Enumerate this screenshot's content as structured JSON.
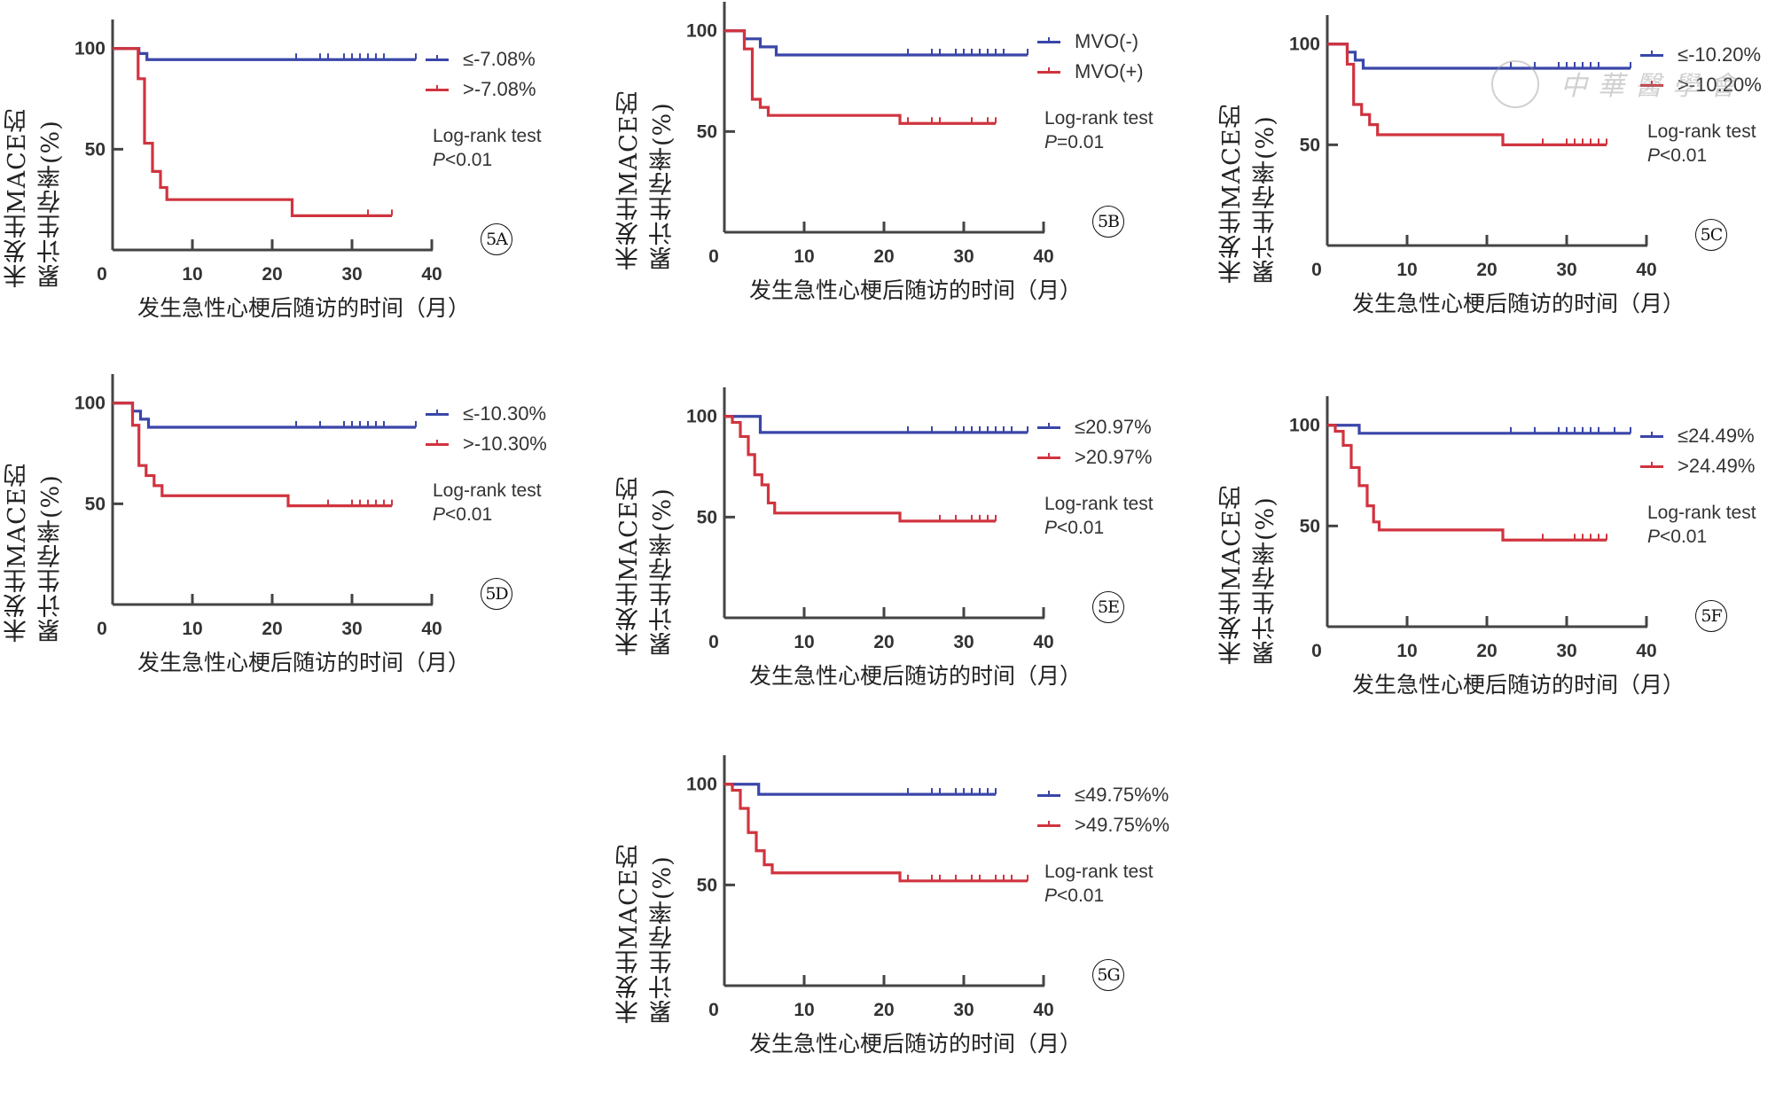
{
  "figure": {
    "y_axis_label_line1": "未发生MACE的",
    "y_axis_label_line2": "累计生存率(%)",
    "x_axis_label": "发生急性心梗后随访的时间（月）",
    "watermark_text": "中華醫學會",
    "colors": {
      "group_low": "#3a46a8",
      "group_high": "#d0343f",
      "axis": "#444444"
    }
  },
  "chart_data": [
    {
      "id": "5A",
      "type": "line",
      "subtype": "kaplan-meier",
      "panel_label": "5A",
      "xlabel": "发生急性心梗后随访的时间（月）",
      "ylabel": "未发生MACE的累计生存率(%)",
      "xlim": [
        0,
        40
      ],
      "ylim": [
        0,
        110
      ],
      "xticks": [
        0,
        10,
        20,
        30,
        40
      ],
      "yticks": [
        50,
        100
      ],
      "legend": "top-right",
      "stat_title": "Log-rank test",
      "stat_p_symbol": "P",
      "stat_p_value": "<0.01",
      "series": [
        {
          "name": "≤-7.08%",
          "color": "#3a46a8",
          "steps": [
            [
              0,
              100
            ],
            [
              3.3,
              97.5
            ],
            [
              4.3,
              94.5
            ]
          ],
          "end": 38,
          "censored": [
            23,
            26,
            27,
            29,
            30,
            31,
            32,
            33,
            34,
            38
          ]
        },
        {
          "name": ">-7.08%",
          "color": "#d0343f",
          "steps": [
            [
              0,
              100
            ],
            [
              3.2,
              85
            ],
            [
              4.0,
              53
            ],
            [
              5.0,
              39
            ],
            [
              6.0,
              31
            ],
            [
              6.8,
              25
            ],
            [
              22.5,
              17
            ]
          ],
          "end": 35,
          "censored": [
            32,
            35
          ]
        }
      ]
    },
    {
      "id": "5B",
      "type": "line",
      "subtype": "kaplan-meier",
      "panel_label": "5B",
      "xlabel": "发生急性心梗后随访的时间（月）",
      "ylabel": "未发生MACE的累计生存率(%)",
      "xlim": [
        0,
        40
      ],
      "ylim": [
        0,
        110
      ],
      "xticks": [
        0,
        10,
        20,
        30,
        40
      ],
      "yticks": [
        50,
        100
      ],
      "legend": "top-right",
      "stat_title": "Log-rank test",
      "stat_p_symbol": "P",
      "stat_p_value": "=0.01",
      "series": [
        {
          "name": "MVO(-)",
          "color": "#3a46a8",
          "steps": [
            [
              0,
              100
            ],
            [
              2.5,
              96
            ],
            [
              4.5,
              92
            ],
            [
              6.5,
              88
            ]
          ],
          "end": 38,
          "censored": [
            23,
            26,
            27,
            29,
            30,
            31,
            32,
            33,
            34,
            35,
            38
          ]
        },
        {
          "name": "MVO(+)",
          "color": "#d0343f",
          "steps": [
            [
              0,
              100
            ],
            [
              2.5,
              91
            ],
            [
              3.5,
              66
            ],
            [
              4.5,
              62
            ],
            [
              5.5,
              58
            ],
            [
              22,
              54
            ]
          ],
          "end": 34,
          "censored": [
            23,
            26,
            27,
            31,
            33,
            34
          ]
        }
      ]
    },
    {
      "id": "5C",
      "type": "line",
      "subtype": "kaplan-meier",
      "panel_label": "5C",
      "xlabel": "发生急性心梗后随访的时间（月）",
      "ylabel": "未发生MACE的累计生存率(%)",
      "xlim": [
        0,
        40
      ],
      "ylim": [
        0,
        110
      ],
      "xticks": [
        0,
        10,
        20,
        30,
        40
      ],
      "yticks": [
        50,
        100
      ],
      "legend": "top-right",
      "stat_title": "Log-rank test",
      "stat_p_symbol": "P",
      "stat_p_value": "<0.01",
      "series": [
        {
          "name": "≤-10.20%",
          "color": "#3a46a8",
          "steps": [
            [
              0,
              100
            ],
            [
              2.5,
              96
            ],
            [
              3.5,
              92
            ],
            [
              4.5,
              88
            ]
          ],
          "end": 38,
          "censored": [
            23,
            26,
            29,
            30,
            31,
            32,
            33,
            34,
            38
          ]
        },
        {
          "name": ">-10.20%",
          "color": "#d0343f",
          "steps": [
            [
              0,
              100
            ],
            [
              2.5,
              90
            ],
            [
              3.3,
              70
            ],
            [
              4.3,
              65
            ],
            [
              5.3,
              60
            ],
            [
              6.3,
              55
            ],
            [
              22,
              50
            ]
          ],
          "end": 35,
          "censored": [
            27,
            30,
            31,
            32,
            33,
            34,
            35
          ]
        }
      ]
    },
    {
      "id": "5D",
      "type": "line",
      "subtype": "kaplan-meier",
      "panel_label": "5D",
      "xlabel": "发生急性心梗后随访的时间（月）",
      "ylabel": "未发生MACE的累计生存率(%)",
      "xlim": [
        0,
        40
      ],
      "ylim": [
        0,
        110
      ],
      "xticks": [
        0,
        10,
        20,
        30,
        40
      ],
      "yticks": [
        50,
        100
      ],
      "legend": "top-right",
      "stat_title": "Log-rank test",
      "stat_p_symbol": "P",
      "stat_p_value": "<0.01",
      "series": [
        {
          "name": "≤-10.30%",
          "color": "#3a46a8",
          "steps": [
            [
              0,
              100
            ],
            [
              2.5,
              96
            ],
            [
              3.5,
              92
            ],
            [
              4.5,
              88
            ]
          ],
          "end": 38,
          "censored": [
            23,
            26,
            29,
            30,
            31,
            32,
            33,
            34,
            38
          ]
        },
        {
          "name": ">-10.30%",
          "color": "#d0343f",
          "steps": [
            [
              0,
              100
            ],
            [
              2.5,
              89
            ],
            [
              3.3,
              69
            ],
            [
              4.2,
              64
            ],
            [
              5.2,
              59
            ],
            [
              6.2,
              54
            ],
            [
              22,
              49
            ]
          ],
          "end": 35,
          "censored": [
            27,
            30,
            31,
            32,
            33,
            34,
            35
          ]
        }
      ]
    },
    {
      "id": "5E",
      "type": "line",
      "subtype": "kaplan-meier",
      "panel_label": "5E",
      "xlabel": "发生急性心梗后随访的时间（月）",
      "ylabel": "未发生MACE的累计生存率(%)",
      "xlim": [
        0,
        40
      ],
      "ylim": [
        0,
        110
      ],
      "xticks": [
        0,
        10,
        20,
        30,
        40
      ],
      "yticks": [
        50,
        100
      ],
      "legend": "top-right",
      "stat_title": "Log-rank test",
      "stat_p_symbol": "P",
      "stat_p_value": "<0.01",
      "series": [
        {
          "name": "≤20.97%",
          "color": "#3a46a8",
          "steps": [
            [
              0,
              100
            ],
            [
              4.5,
              92
            ]
          ],
          "end": 38,
          "censored": [
            23,
            26,
            29,
            30,
            31,
            32,
            33,
            34,
            35,
            36,
            38
          ]
        },
        {
          "name": ">20.97%",
          "color": "#d0343f",
          "steps": [
            [
              0,
              100
            ],
            [
              1,
              97
            ],
            [
              2,
              90
            ],
            [
              3,
              81
            ],
            [
              3.8,
              71
            ],
            [
              4.7,
              66
            ],
            [
              5.5,
              57
            ],
            [
              6.3,
              52
            ],
            [
              22,
              48
            ]
          ],
          "end": 34,
          "censored": [
            27,
            29,
            31,
            32,
            33,
            34
          ]
        }
      ]
    },
    {
      "id": "5F",
      "type": "line",
      "subtype": "kaplan-meier",
      "panel_label": "5F",
      "xlabel": "发生急性心梗后随访的时间（月）",
      "ylabel": "未发生MACE的累计生存率(%)",
      "xlim": [
        0,
        40
      ],
      "ylim": [
        0,
        110
      ],
      "xticks": [
        0,
        10,
        20,
        30,
        40
      ],
      "yticks": [
        50,
        100
      ],
      "legend": "top-right",
      "stat_title": "Log-rank test",
      "stat_p_symbol": "P",
      "stat_p_value": "<0.01",
      "series": [
        {
          "name": "≤24.49%",
          "color": "#3a46a8",
          "steps": [
            [
              0,
              100
            ],
            [
              4,
              96
            ]
          ],
          "end": 38,
          "censored": [
            23,
            26,
            29,
            30,
            31,
            32,
            33,
            34,
            36,
            38
          ]
        },
        {
          "name": ">24.49%",
          "color": "#d0343f",
          "steps": [
            [
              0,
              100
            ],
            [
              1,
              97
            ],
            [
              2,
              90
            ],
            [
              3,
              79
            ],
            [
              4,
              70
            ],
            [
              5,
              60
            ],
            [
              5.8,
              52
            ],
            [
              6.5,
              48
            ],
            [
              22,
              43
            ]
          ],
          "end": 35,
          "censored": [
            27,
            31,
            32,
            33,
            34,
            35
          ]
        }
      ]
    },
    {
      "id": "5G",
      "type": "line",
      "subtype": "kaplan-meier",
      "panel_label": "5G",
      "xlabel": "发生急性心梗后随访的时间（月）",
      "ylabel": "未发生MACE的累计生存率(%)",
      "xlim": [
        0,
        40
      ],
      "ylim": [
        0,
        110
      ],
      "xticks": [
        0,
        10,
        20,
        30,
        40
      ],
      "yticks": [
        50,
        100
      ],
      "legend": "top-right",
      "stat_title": "Log-rank test",
      "stat_p_symbol": "P",
      "stat_p_value": "<0.01",
      "series": [
        {
          "name": "≤49.75%%",
          "color": "#3a46a8",
          "steps": [
            [
              0,
              100
            ],
            [
              4.3,
              95
            ]
          ],
          "end": 34,
          "censored": [
            23,
            26,
            27,
            29,
            30,
            31,
            32,
            33,
            34
          ]
        },
        {
          "name": ">49.75%%",
          "color": "#d0343f",
          "steps": [
            [
              0,
              100
            ],
            [
              1,
              97
            ],
            [
              2,
              88
            ],
            [
              3,
              76
            ],
            [
              4,
              67
            ],
            [
              5,
              60
            ],
            [
              6,
              56
            ],
            [
              22,
              52
            ]
          ],
          "end": 38,
          "censored": [
            23,
            26,
            27,
            29,
            31,
            32,
            34,
            35,
            36,
            38
          ]
        }
      ]
    }
  ]
}
